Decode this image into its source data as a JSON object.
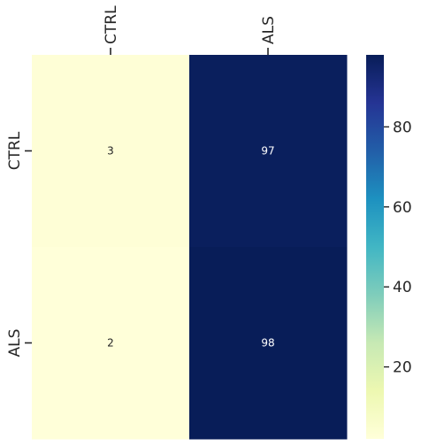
{
  "chart_data": {
    "type": "heatmap",
    "title": "",
    "xlabel": "",
    "ylabel": "",
    "x_categories": [
      "CTRL",
      "ALS"
    ],
    "y_categories": [
      "CTRL",
      "ALS"
    ],
    "values": [
      [
        3,
        97
      ],
      [
        2,
        98
      ]
    ],
    "x_tick_position": "top",
    "x_tick_rotation": "vertical",
    "y_tick_rotation": "vertical",
    "colormap": "YlGnBu",
    "colorbar": {
      "vmin": 2,
      "vmax": 98,
      "ticks": [
        20,
        40,
        60,
        80
      ]
    },
    "annotated": true,
    "grid": false
  }
}
